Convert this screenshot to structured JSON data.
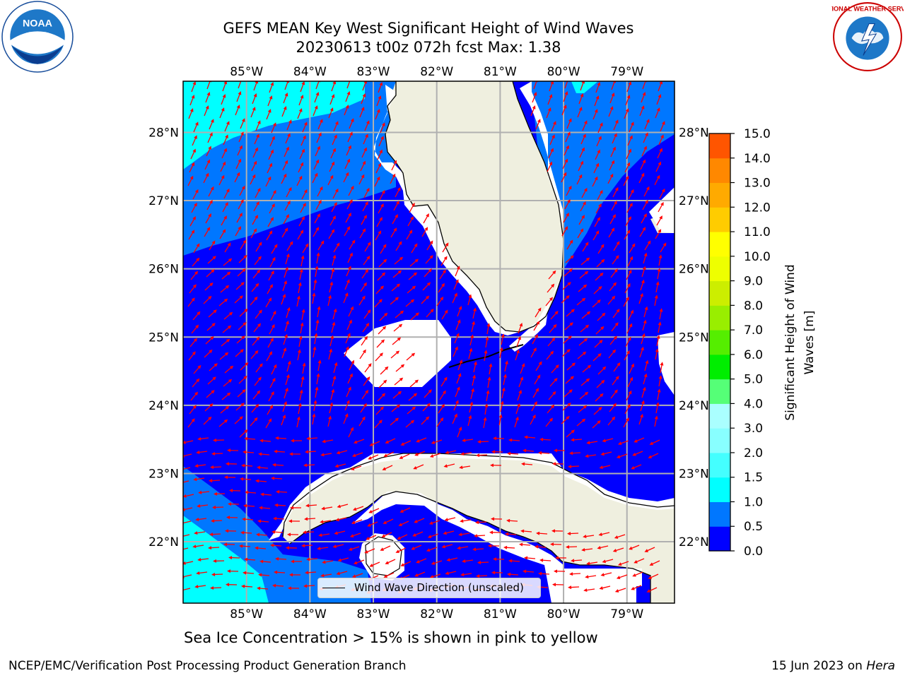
{
  "title": {
    "line1": "GEFS MEAN Key West Significant Height of Wind Waves",
    "line2": "20230613 t00z 072h fcst   Max: 1.38"
  },
  "logos": {
    "left": "noaa-logo",
    "right": "nws-logo",
    "left_text": "NOAA",
    "right_text": "NATIONAL WEATHER SERVICE"
  },
  "map": {
    "lon_labels": [
      "85°W",
      "84°W",
      "83°W",
      "82°W",
      "81°W",
      "80°W",
      "79°W"
    ],
    "lat_labels": [
      "28°N",
      "27°N",
      "26°N",
      "25°N",
      "24°N",
      "23°N",
      "22°N"
    ],
    "lon_range": [
      -86,
      -78.25
    ],
    "lat_range": [
      21.1,
      28.75
    ],
    "legend_label": "Wind Wave Direction (unscaled)",
    "colors": {
      "land": "#efefdf",
      "arrow": "#ff0000",
      "coast": "#000000",
      "grid": "#b0b0b0"
    }
  },
  "colorbar": {
    "label_line1": "Significant Height of Wind",
    "label_line2": "Waves [m]",
    "ticks": [
      "0.0",
      "0.5",
      "1.0",
      "1.5",
      "2.0",
      "3.0",
      "4.0",
      "5.0",
      "6.0",
      "7.0",
      "8.0",
      "9.0",
      "10.0",
      "11.0",
      "12.0",
      "13.0",
      "14.0",
      "15.0"
    ],
    "colors": [
      "#0000ff",
      "#0077ff",
      "#00ffff",
      "#44ffff",
      "#88ffff",
      "#aaffff",
      "#55ff77",
      "#00ee00",
      "#55ee00",
      "#99ee00",
      "#ccee00",
      "#eeff00",
      "#ffff00",
      "#ffcc00",
      "#ffaa00",
      "#ff8800",
      "#ff5500",
      "#ff2200",
      "#ff0000"
    ]
  },
  "footer": {
    "sea_ice_note": "Sea Ice Concentration > 15% is shown in pink to yellow",
    "credit": "NCEP/EMC/Verification Post Processing Product Generation Branch",
    "date_prefix": "15 Jun 2023 on ",
    "date_host": "Hera"
  }
}
